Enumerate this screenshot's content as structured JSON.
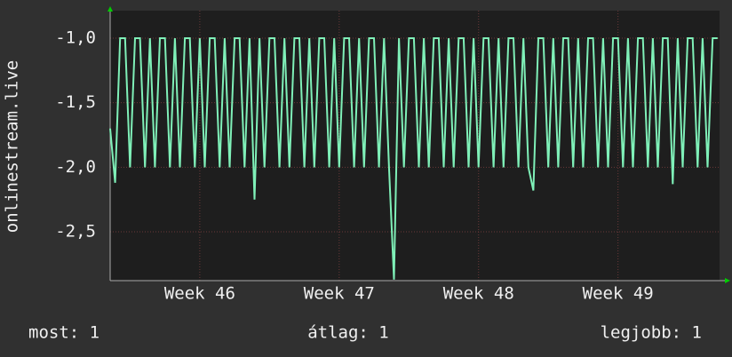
{
  "chart_data": {
    "type": "line",
    "y_label": "onlinestream.live",
    "x": [
      0,
      0.25,
      0.5,
      0.75,
      1,
      1.25,
      1.5,
      1.75,
      2,
      2.25,
      2.5,
      2.75,
      3,
      3.25,
      3.5,
      3.75,
      4,
      4.25,
      4.5,
      4.75,
      5,
      5.25,
      5.5,
      5.75,
      6,
      6.25,
      6.5,
      6.75,
      7,
      7.25,
      7.5,
      7.75,
      8,
      8.25,
      8.5,
      8.75,
      9,
      9.25,
      9.5,
      9.75,
      10,
      10.25,
      10.5,
      10.75,
      11,
      11.25,
      11.5,
      11.75,
      12,
      12.25,
      12.5,
      12.75,
      13,
      13.25,
      13.5,
      13.75,
      14,
      14.25,
      14.5,
      14.75,
      15,
      15.25,
      15.5,
      15.75,
      16,
      16.25,
      16.5,
      16.75,
      17,
      17.25,
      17.5,
      17.75,
      18,
      18.25,
      18.5,
      18.75,
      19,
      19.25,
      19.5,
      19.75,
      20,
      20.25,
      20.5,
      20.75,
      21,
      21.25,
      21.5,
      21.75,
      22,
      22.25,
      22.5,
      22.75,
      23,
      23.25,
      23.5,
      23.75,
      24,
      24.25,
      24.5,
      24.75,
      25,
      25.25,
      25.5,
      25.75,
      26,
      26.25,
      26.5,
      26.75,
      27,
      27.25,
      27.5,
      27.75,
      28,
      28.25,
      28.5,
      28.75,
      29,
      29.25,
      29.5,
      29.75,
      30,
      30.25,
      30.5
    ],
    "series": [
      {
        "name": "onlinestream.live",
        "color": "#7ff0b8",
        "values": [
          -1.7,
          -2.12,
          -1.0,
          -1.0,
          -2.0,
          -1.0,
          -1.0,
          -2.0,
          -1.0,
          -2.0,
          -1.0,
          -1.0,
          -2.0,
          -1.0,
          -2.0,
          -1.0,
          -1.0,
          -2.0,
          -1.0,
          -2.0,
          -1.0,
          -1.0,
          -2.0,
          -1.0,
          -2.0,
          -1.0,
          -1.0,
          -2.0,
          -1.0,
          -2.25,
          -1.0,
          -2.0,
          -1.0,
          -1.0,
          -2.0,
          -1.0,
          -2.0,
          -1.0,
          -1.0,
          -2.0,
          -1.0,
          -2.0,
          -1.0,
          -1.0,
          -2.0,
          -1.0,
          -2.0,
          -1.0,
          -1.0,
          -2.0,
          -1.0,
          -2.0,
          -1.0,
          -1.0,
          -2.0,
          -1.0,
          -2.0,
          -2.87,
          -1.0,
          -2.0,
          -1.0,
          -1.0,
          -2.0,
          -1.0,
          -2.0,
          -1.0,
          -1.0,
          -2.0,
          -1.0,
          -2.0,
          -1.0,
          -1.0,
          -2.0,
          -1.0,
          -2.0,
          -1.0,
          -1.0,
          -2.0,
          -1.0,
          -2.0,
          -1.0,
          -1.0,
          -2.0,
          -1.0,
          -2.0,
          -2.18,
          -1.0,
          -1.0,
          -2.0,
          -1.0,
          -2.0,
          -1.0,
          -1.0,
          -2.0,
          -1.0,
          -2.0,
          -1.0,
          -1.0,
          -2.0,
          -1.0,
          -2.0,
          -1.0,
          -1.0,
          -2.0,
          -1.0,
          -2.0,
          -1.0,
          -1.0,
          -2.0,
          -1.0,
          -2.0,
          -1.0,
          -1.0,
          -2.13,
          -1.0,
          -2.0,
          -1.0,
          -1.0,
          -2.0,
          -1.0,
          -2.0,
          -1.0,
          -1.0
        ]
      }
    ],
    "xlim": [
      0,
      30.6
    ],
    "xticks": [
      {
        "value": 4.5,
        "label": "Week 46"
      },
      {
        "value": 11.5,
        "label": "Week 47"
      },
      {
        "value": 18.5,
        "label": "Week 48"
      },
      {
        "value": 25.5,
        "label": "Week 49"
      }
    ],
    "ylim": [
      -2.878,
      -0.787
    ],
    "yticks": [
      {
        "value": -1.0,
        "label": "-1,0"
      },
      {
        "value": -1.5,
        "label": "-1,5"
      },
      {
        "value": -2.0,
        "label": "-2,0"
      },
      {
        "value": -2.5,
        "label": "-2,5"
      }
    ],
    "grid": true,
    "annotations": [
      "most: 1",
      "átlag: 1",
      "legjobb: 1"
    ]
  }
}
